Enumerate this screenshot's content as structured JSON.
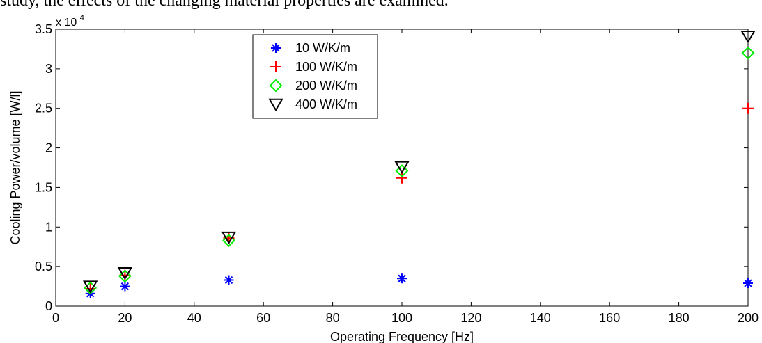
{
  "page": {
    "top_text": "study, the effects of the changing material properties are examined."
  },
  "chart_data": {
    "type": "scatter",
    "xlabel": "Operating Frequency [Hz]",
    "ylabel": "Cooling Power/volume [W/l]",
    "y_multiplier_label": "x 10",
    "y_multiplier_exponent": "4",
    "xlim": [
      0,
      200
    ],
    "ylim": [
      0,
      35000
    ],
    "x_ticks": [
      0,
      20,
      40,
      60,
      80,
      100,
      120,
      140,
      160,
      180,
      200
    ],
    "x_tick_labels": [
      "0",
      "20",
      "40",
      "60",
      "80",
      "100",
      "120",
      "140",
      "160",
      "180",
      "200"
    ],
    "y_ticks": [
      0,
      5000,
      10000,
      15000,
      20000,
      25000,
      30000,
      35000
    ],
    "y_tick_labels": [
      "0",
      "0.5",
      "1",
      "1.5",
      "2",
      "2.5",
      "3",
      "3.5"
    ],
    "grid": false,
    "legend_position": "top-center",
    "series": [
      {
        "name": "10 W/K/m",
        "marker": "asterisk",
        "color": "#0000ff",
        "x": [
          10,
          20,
          50,
          100,
          200
        ],
        "y": [
          1600,
          2500,
          3300,
          3500,
          2900
        ]
      },
      {
        "name": "100 W/K/m",
        "marker": "plus",
        "color": "#ff0000",
        "x": [
          10,
          20,
          50,
          100,
          200
        ],
        "y": [
          2200,
          3900,
          8600,
          16200,
          25000
        ]
      },
      {
        "name": "200 W/K/m",
        "marker": "diamond",
        "color": "#00ee00",
        "x": [
          10,
          20,
          50,
          100,
          200
        ],
        "y": [
          2300,
          3800,
          8300,
          17100,
          32000
        ]
      },
      {
        "name": "400 W/K/m",
        "marker": "triangle-down",
        "color": "#000000",
        "x": [
          10,
          20,
          50,
          100,
          200
        ],
        "y": [
          2500,
          4200,
          8700,
          17600,
          34100
        ]
      }
    ]
  }
}
